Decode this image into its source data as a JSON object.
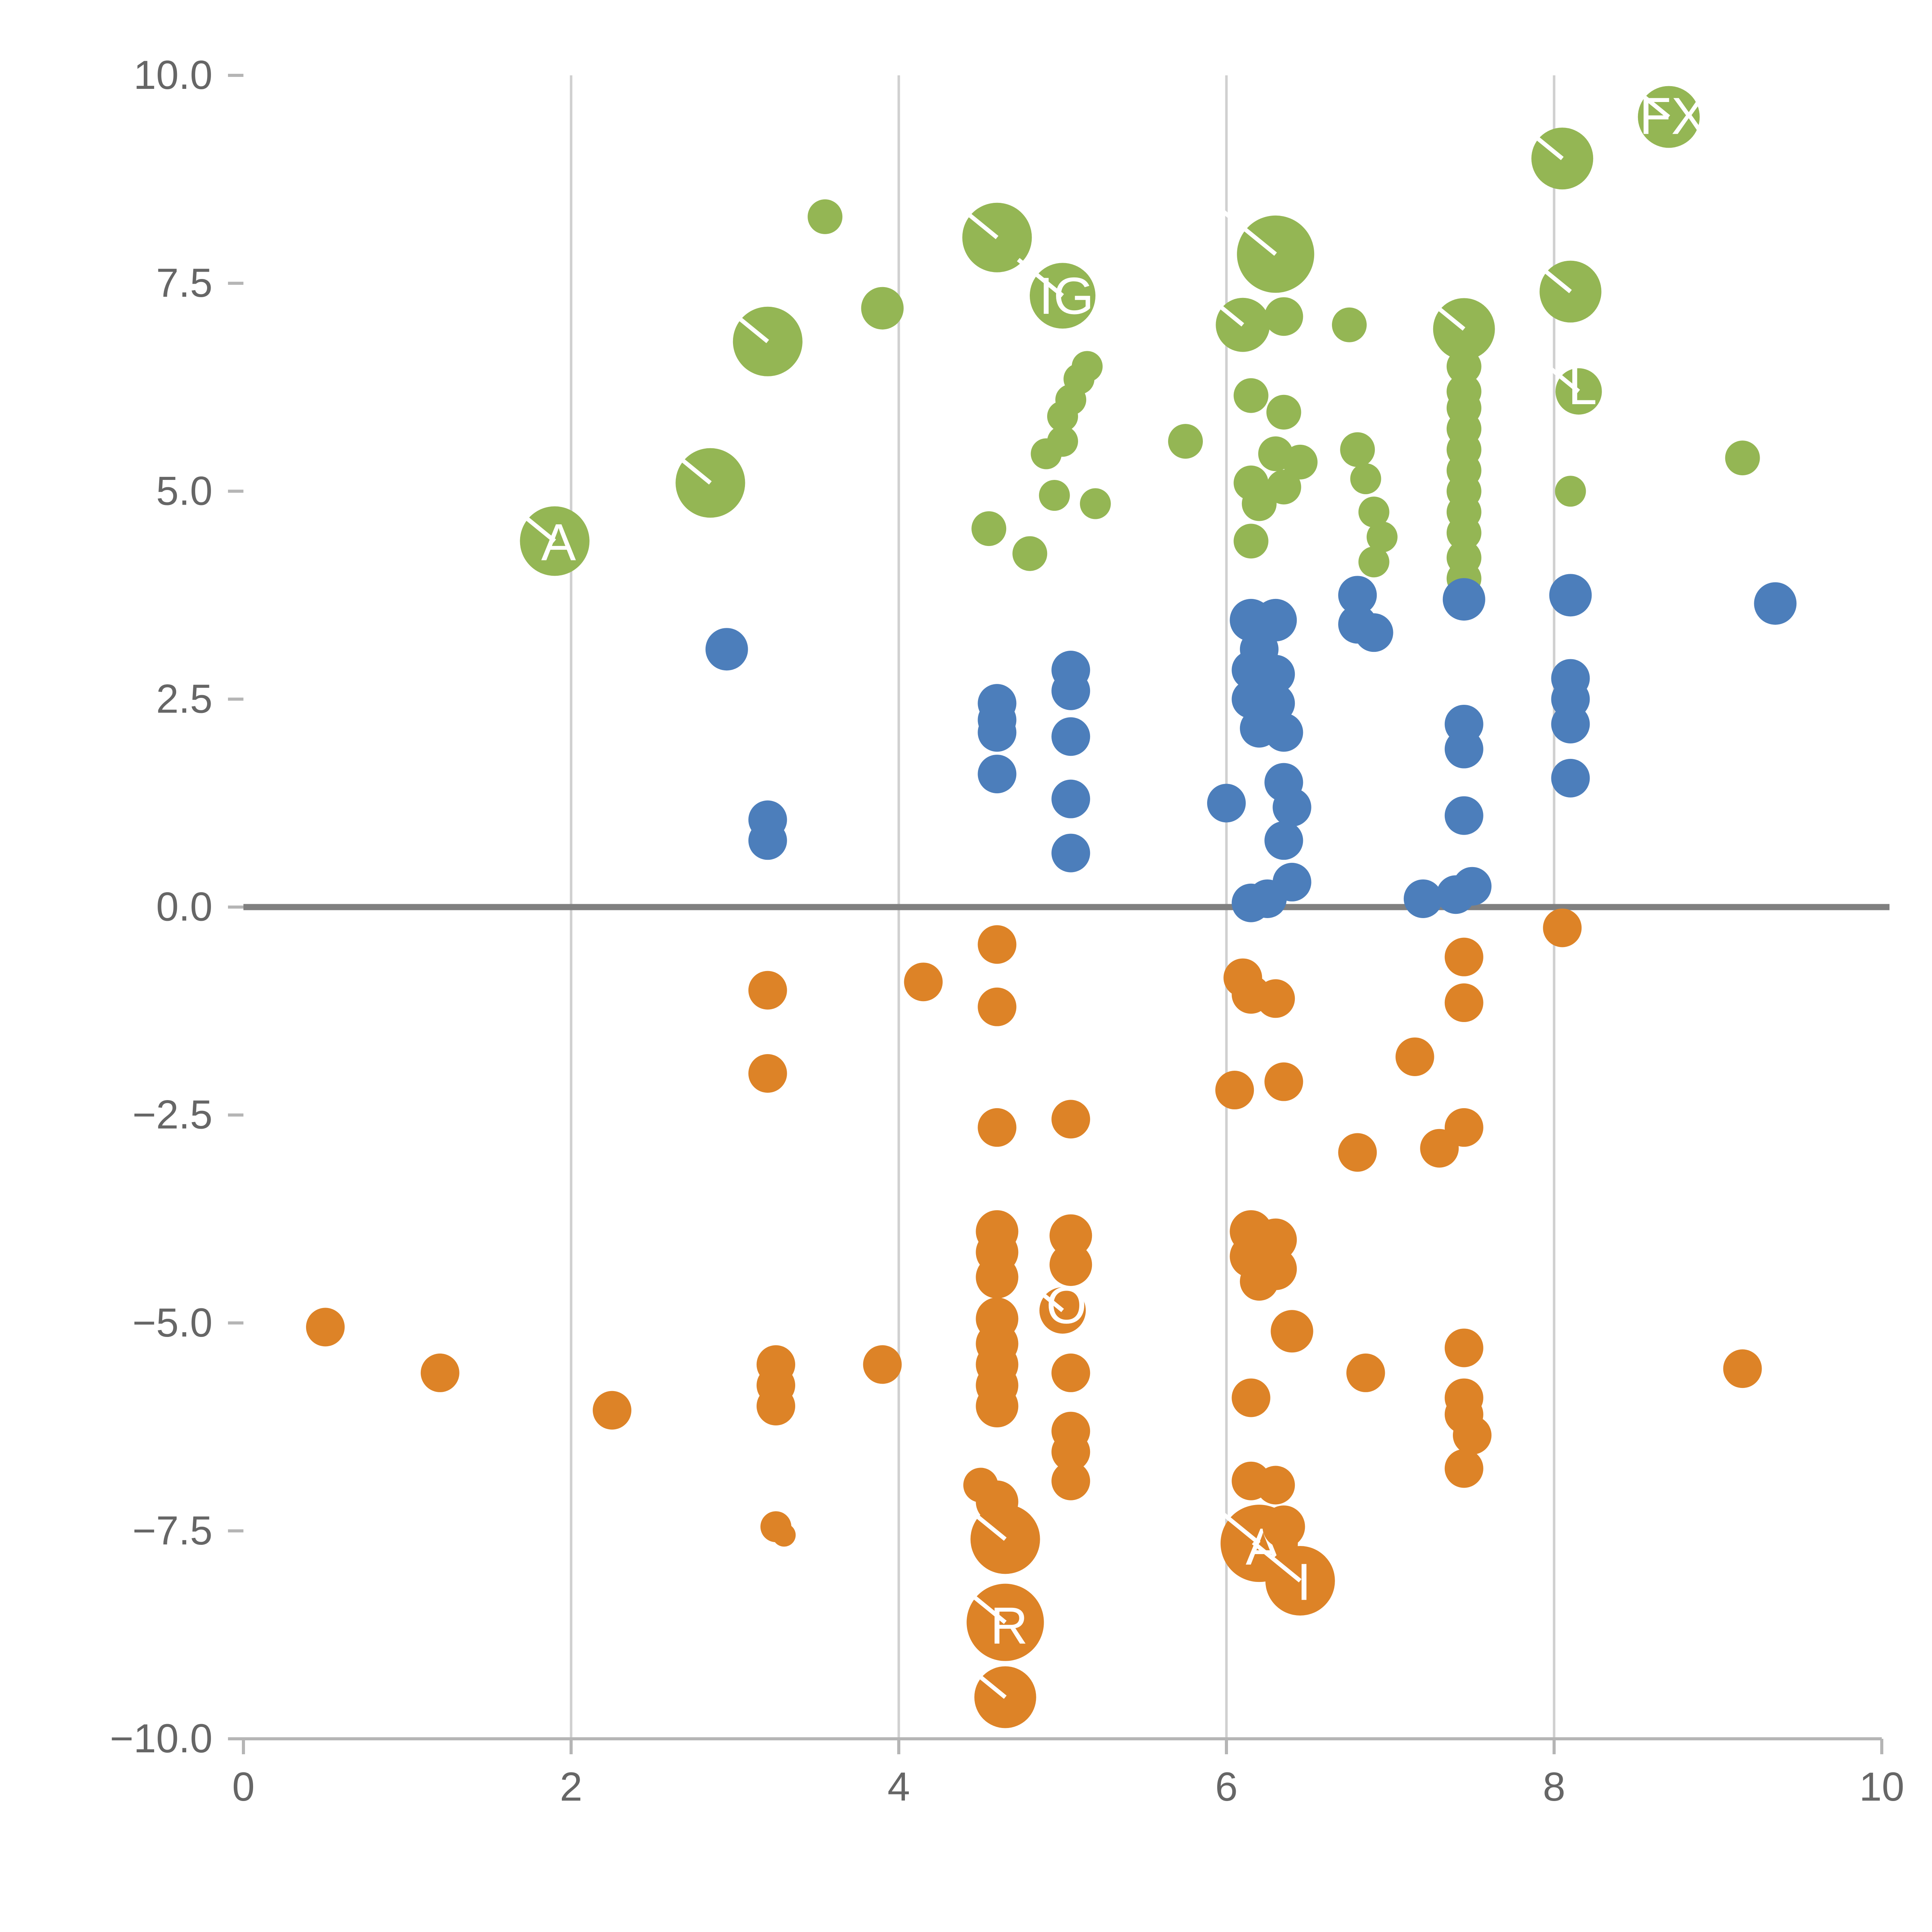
{
  "chart_data": {
    "type": "scatter",
    "title": "",
    "xlabel": "",
    "ylabel": "",
    "xlim": [
      0,
      10
    ],
    "ylim": [
      -10,
      10
    ],
    "x_ticks": [
      {
        "value": 0,
        "label": "0"
      },
      {
        "value": 2,
        "label": "2"
      },
      {
        "value": 4,
        "label": "4"
      },
      {
        "value": 6,
        "label": "6"
      },
      {
        "value": 8,
        "label": "8"
      },
      {
        "value": 10,
        "label": "10"
      }
    ],
    "y_ticks": [
      {
        "value": -10,
        "label": "−10.0"
      },
      {
        "value": -7.5,
        "label": "−7.5"
      },
      {
        "value": -5,
        "label": "−5.0"
      },
      {
        "value": -2.5,
        "label": "−2.5"
      },
      {
        "value": 0,
        "label": "0.0"
      },
      {
        "value": 2.5,
        "label": "2.5"
      },
      {
        "value": 5,
        "label": "5.0"
      },
      {
        "value": 7.5,
        "label": "7.5"
      },
      {
        "value": 10,
        "label": "10.0"
      }
    ],
    "grid": {
      "vertical_lines_at": [
        2,
        4,
        6,
        8
      ],
      "zero_line": true,
      "grid_color": "#d0d0d0",
      "zero_line_color": "#808080",
      "axis_color": "#b5b5b5",
      "tick_label_color": "#666666"
    },
    "legend": "none",
    "series": [
      {
        "name": "green",
        "color": "#94B654",
        "points": [
          [
            1.9,
            4.4,
            18,
            "A"
          ],
          [
            2.85,
            5.1,
            18
          ],
          [
            3.2,
            6.8,
            18
          ],
          [
            3.55,
            8.3,
            9
          ],
          [
            3.9,
            7.2,
            11
          ],
          [
            4.6,
            8.05,
            18
          ],
          [
            5.0,
            7.35,
            17,
            "IG"
          ],
          [
            4.55,
            4.55,
            9
          ],
          [
            4.8,
            4.25,
            9
          ],
          [
            4.95,
            4.95,
            8
          ],
          [
            4.9,
            5.45,
            8
          ],
          [
            5.0,
            5.6,
            8
          ],
          [
            5.0,
            5.9,
            8
          ],
          [
            5.05,
            6.1,
            8
          ],
          [
            5.1,
            6.35,
            8
          ],
          [
            5.15,
            6.5,
            8
          ],
          [
            5.2,
            4.85,
            8
          ],
          [
            5.75,
            5.6,
            9
          ],
          [
            6.1,
            7.0,
            14
          ],
          [
            6.3,
            7.85,
            20
          ],
          [
            6.35,
            7.1,
            10
          ],
          [
            6.15,
            6.15,
            9
          ],
          [
            6.35,
            5.95,
            9
          ],
          [
            6.3,
            5.45,
            9
          ],
          [
            6.45,
            5.35,
            9
          ],
          [
            6.35,
            5.05,
            9
          ],
          [
            6.15,
            5.1,
            9
          ],
          [
            6.2,
            4.85,
            9
          ],
          [
            6.15,
            4.4,
            9
          ],
          [
            6.75,
            7.0,
            9
          ],
          [
            6.8,
            5.5,
            9
          ],
          [
            6.85,
            5.15,
            8
          ],
          [
            6.9,
            4.75,
            8
          ],
          [
            6.95,
            4.45,
            8
          ],
          [
            6.9,
            4.15,
            8
          ],
          [
            7.45,
            6.95,
            16
          ],
          [
            7.45,
            6.5,
            9
          ],
          [
            7.45,
            6.2,
            9
          ],
          [
            7.45,
            6.0,
            9
          ],
          [
            7.45,
            5.75,
            9
          ],
          [
            7.45,
            5.5,
            9
          ],
          [
            7.45,
            5.25,
            9
          ],
          [
            7.45,
            5.0,
            9
          ],
          [
            7.45,
            4.75,
            9
          ],
          [
            7.45,
            4.5,
            9
          ],
          [
            7.45,
            4.2,
            9
          ],
          [
            7.45,
            3.95,
            9
          ],
          [
            8.05,
            9.0,
            16
          ],
          [
            8.1,
            7.4,
            16
          ],
          [
            8.15,
            6.2,
            12,
            "L"
          ],
          [
            8.1,
            5.0,
            8
          ],
          [
            8.7,
            9.5,
            16,
            "FX"
          ],
          [
            9.15,
            5.4,
            9
          ]
        ]
      },
      {
        "name": "blue",
        "color": "#4C7EBB",
        "points": [
          [
            2.95,
            3.1,
            11
          ],
          [
            3.2,
            1.05,
            10
          ],
          [
            3.2,
            0.8,
            10
          ],
          [
            4.6,
            2.45,
            10
          ],
          [
            4.6,
            2.25,
            10
          ],
          [
            4.6,
            2.1,
            10
          ],
          [
            4.6,
            1.6,
            10
          ],
          [
            5.05,
            2.85,
            10
          ],
          [
            5.05,
            2.6,
            10
          ],
          [
            5.05,
            2.05,
            10
          ],
          [
            5.05,
            1.3,
            10
          ],
          [
            5.05,
            0.65,
            10
          ],
          [
            6.0,
            1.25,
            10
          ],
          [
            6.15,
            3.45,
            11
          ],
          [
            6.3,
            3.45,
            11
          ],
          [
            6.2,
            3.1,
            10
          ],
          [
            6.15,
            2.85,
            10
          ],
          [
            6.3,
            2.8,
            10
          ],
          [
            6.15,
            2.5,
            10
          ],
          [
            6.3,
            2.45,
            10
          ],
          [
            6.2,
            2.15,
            10
          ],
          [
            6.35,
            2.1,
            10
          ],
          [
            6.35,
            1.5,
            10
          ],
          [
            6.4,
            1.2,
            10
          ],
          [
            6.35,
            0.8,
            10
          ],
          [
            6.4,
            0.3,
            10
          ],
          [
            6.25,
            0.1,
            10
          ],
          [
            6.15,
            0.05,
            10
          ],
          [
            6.8,
            3.75,
            10
          ],
          [
            6.8,
            3.4,
            10
          ],
          [
            6.9,
            3.3,
            10
          ],
          [
            7.2,
            0.1,
            10
          ],
          [
            7.45,
            3.7,
            11
          ],
          [
            7.45,
            2.2,
            10
          ],
          [
            7.45,
            1.9,
            10
          ],
          [
            7.45,
            1.1,
            10
          ],
          [
            7.5,
            0.25,
            10
          ],
          [
            7.4,
            0.15,
            10
          ],
          [
            8.1,
            3.75,
            11
          ],
          [
            8.1,
            2.75,
            10
          ],
          [
            8.1,
            2.5,
            10
          ],
          [
            8.1,
            2.2,
            10
          ],
          [
            8.1,
            1.55,
            10
          ],
          [
            9.35,
            3.65,
            11
          ]
        ]
      },
      {
        "name": "orange",
        "color": "#DD8327",
        "points": [
          [
            0.5,
            -5.05,
            10
          ],
          [
            1.2,
            -5.6,
            10
          ],
          [
            2.25,
            -6.05,
            10
          ],
          [
            3.2,
            -1.0,
            10
          ],
          [
            3.2,
            -2.0,
            10
          ],
          [
            3.25,
            -5.5,
            10
          ],
          [
            3.25,
            -5.75,
            10
          ],
          [
            3.25,
            -6.0,
            10
          ],
          [
            3.25,
            -7.45,
            8
          ],
          [
            3.3,
            -7.55,
            6
          ],
          [
            4.15,
            -0.9,
            10
          ],
          [
            3.9,
            -5.5,
            10
          ],
          [
            4.6,
            -0.45,
            10
          ],
          [
            4.6,
            -1.2,
            10
          ],
          [
            4.6,
            -2.65,
            10
          ],
          [
            5.05,
            -2.55,
            10
          ],
          [
            4.6,
            -3.9,
            11
          ],
          [
            4.6,
            -4.15,
            11
          ],
          [
            4.6,
            -4.45,
            11
          ],
          [
            5.05,
            -3.95,
            11
          ],
          [
            5.05,
            -4.3,
            11
          ],
          [
            5.0,
            -4.85,
            12,
            "O"
          ],
          [
            4.6,
            -4.95,
            11
          ],
          [
            4.6,
            -5.25,
            11
          ],
          [
            4.6,
            -5.5,
            11
          ],
          [
            4.6,
            -5.75,
            11
          ],
          [
            4.6,
            -6.0,
            11
          ],
          [
            5.05,
            -5.6,
            10
          ],
          [
            5.05,
            -6.3,
            10
          ],
          [
            5.05,
            -6.55,
            10
          ],
          [
            5.05,
            -6.9,
            10
          ],
          [
            4.5,
            -6.95,
            9
          ],
          [
            4.6,
            -7.15,
            11
          ],
          [
            4.65,
            -7.6,
            18
          ],
          [
            4.65,
            -8.6,
            20,
            "R"
          ],
          [
            4.65,
            -9.5,
            16
          ],
          [
            6.1,
            -0.85,
            10
          ],
          [
            6.15,
            -1.05,
            10
          ],
          [
            6.3,
            -1.1,
            10
          ],
          [
            6.05,
            -2.2,
            10
          ],
          [
            6.35,
            -2.1,
            10
          ],
          [
            6.15,
            -3.9,
            11
          ],
          [
            6.3,
            -4.0,
            11
          ],
          [
            6.15,
            -4.2,
            11
          ],
          [
            6.3,
            -4.35,
            11
          ],
          [
            6.2,
            -4.5,
            10
          ],
          [
            6.4,
            -5.1,
            11
          ],
          [
            6.15,
            -5.9,
            10
          ],
          [
            6.85,
            -5.6,
            10
          ],
          [
            6.8,
            -2.95,
            10
          ],
          [
            7.15,
            -1.8,
            10
          ],
          [
            7.3,
            -2.9,
            10
          ],
          [
            7.45,
            -2.65,
            10
          ],
          [
            7.45,
            -0.6,
            10
          ],
          [
            7.45,
            -1.15,
            10
          ],
          [
            7.45,
            -5.3,
            10
          ],
          [
            7.45,
            -5.9,
            10
          ],
          [
            7.45,
            -6.1,
            10
          ],
          [
            7.5,
            -6.35,
            10
          ],
          [
            7.45,
            -6.75,
            10
          ],
          [
            6.15,
            -6.9,
            10
          ],
          [
            6.3,
            -6.95,
            10
          ],
          [
            6.2,
            -7.65,
            20,
            "A"
          ],
          [
            6.35,
            -7.45,
            11
          ],
          [
            6.45,
            -8.1,
            18,
            "I"
          ],
          [
            8.05,
            -0.25,
            10
          ],
          [
            9.15,
            -5.55,
            10
          ]
        ]
      }
    ]
  }
}
